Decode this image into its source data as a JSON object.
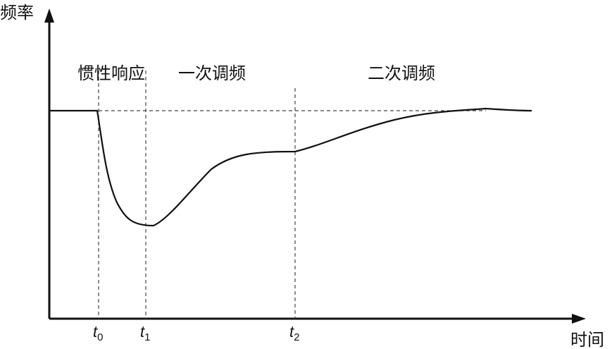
{
  "axes": {
    "y_label": "频率",
    "x_label": "时间"
  },
  "phases": [
    "惯性响应",
    "一次调频",
    "二次调频"
  ],
  "markers": [
    {
      "var": "t",
      "sub": "0"
    },
    {
      "var": "t",
      "sub": "1"
    },
    {
      "var": "t",
      "sub": "2"
    }
  ]
}
